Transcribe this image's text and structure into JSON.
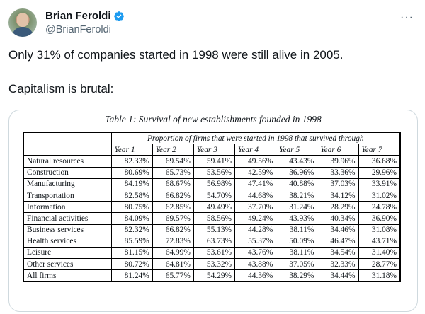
{
  "author": {
    "display_name": "Brian Feroldi",
    "handle": "@BrianFeroldi",
    "verified_icon": "verified-badge-icon",
    "more_icon": "more-icon"
  },
  "tweet": {
    "line1": "Only 31% of companies started in 1998 were still alive in 2005.",
    "line2": "Capitalism is brutal:"
  },
  "table": {
    "caption": "Table 1: Survival of new establishments founded in 1998",
    "super_header": "Proportion of firms that were started in 1998 that survived through",
    "years": [
      "Year 1",
      "Year 2",
      "Year 3",
      "Year 4",
      "Year 5",
      "Year 6",
      "Year 7"
    ],
    "rows": [
      {
        "label": "Natural resources",
        "values": [
          "82.33%",
          "69.54%",
          "59.41%",
          "49.56%",
          "43.43%",
          "39.96%",
          "36.68%"
        ]
      },
      {
        "label": "Construction",
        "values": [
          "80.69%",
          "65.73%",
          "53.56%",
          "42.59%",
          "36.96%",
          "33.36%",
          "29.96%"
        ]
      },
      {
        "label": "Manufacturing",
        "values": [
          "84.19%",
          "68.67%",
          "56.98%",
          "47.41%",
          "40.88%",
          "37.03%",
          "33.91%"
        ]
      },
      {
        "label": "Transportation",
        "values": [
          "82.58%",
          "66.82%",
          "54.70%",
          "44.68%",
          "38.21%",
          "34.12%",
          "31.02%"
        ]
      },
      {
        "label": "Information",
        "values": [
          "80.75%",
          "62.85%",
          "49.49%",
          "37.70%",
          "31.24%",
          "28.29%",
          "24.78%"
        ]
      },
      {
        "label": "Financial activities",
        "values": [
          "84.09%",
          "69.57%",
          "58.56%",
          "49.24%",
          "43.93%",
          "40.34%",
          "36.90%"
        ]
      },
      {
        "label": "Business services",
        "values": [
          "82.32%",
          "66.82%",
          "55.13%",
          "44.28%",
          "38.11%",
          "34.46%",
          "31.08%"
        ]
      },
      {
        "label": "Health services",
        "values": [
          "85.59%",
          "72.83%",
          "63.73%",
          "55.37%",
          "50.09%",
          "46.47%",
          "43.71%"
        ]
      },
      {
        "label": "Leisure",
        "values": [
          "81.15%",
          "64.99%",
          "53.61%",
          "43.76%",
          "38.11%",
          "34.54%",
          "31.40%"
        ]
      },
      {
        "label": "Other services",
        "values": [
          "80.72%",
          "64.81%",
          "53.32%",
          "43.88%",
          "37.05%",
          "32.33%",
          "28.77%"
        ]
      },
      {
        "label": "All firms",
        "values": [
          "81.24%",
          "65.77%",
          "54.29%",
          "44.36%",
          "38.29%",
          "34.44%",
          "31.18%"
        ]
      }
    ]
  },
  "colors": {
    "text": "#0f1419",
    "secondary": "#536471",
    "verified": "#1d9bf0",
    "border": "#cfd9de"
  }
}
